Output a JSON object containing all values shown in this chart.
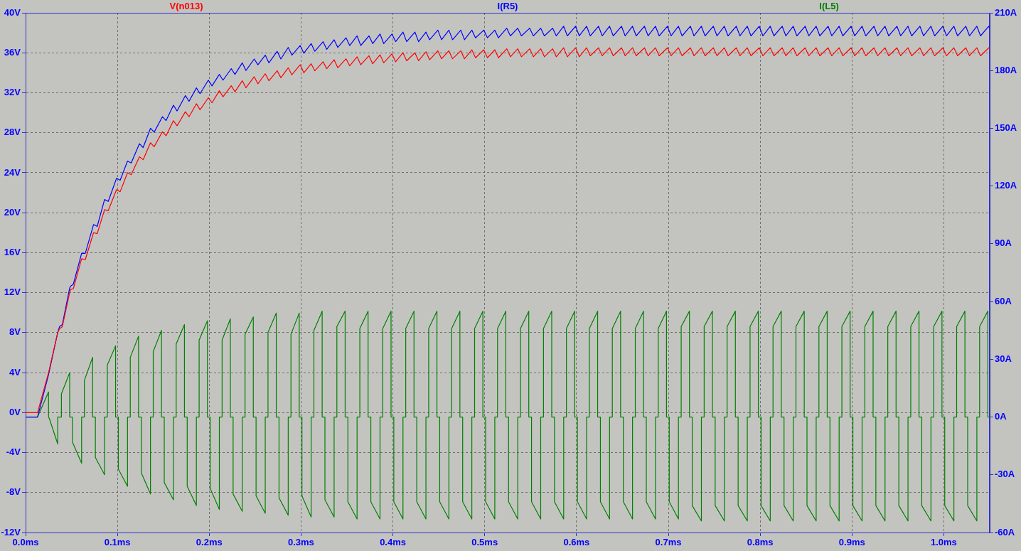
{
  "chart_data": {
    "type": "line",
    "x": [
      0,
      0.013,
      0.025,
      0.035,
      0.037,
      0.04,
      0.048,
      0.049,
      0.052,
      0.061,
      0.065,
      0.074,
      0.078,
      0.086,
      0.09,
      0.099,
      0.103,
      0.111,
      0.115,
      0.124,
      0.128,
      0.136,
      0.14,
      0.149,
      0.153,
      0.161,
      0.165,
      0.174,
      0.178,
      0.186,
      0.19,
      0.199,
      0.203,
      0.211,
      0.215,
      0.224,
      0.228,
      0.236,
      0.24,
      0.249,
      0.253,
      0.261,
      0.265,
      0.274,
      0.278,
      0.286,
      0.29,
      0.299,
      0.303,
      0.311,
      0.315,
      0.324,
      0.328,
      0.336,
      0.34,
      0.349,
      0.353,
      0.361,
      0.365,
      0.374,
      0.378,
      0.386,
      0.39,
      0.399,
      0.403,
      0.411,
      0.415,
      0.424,
      0.428,
      0.436,
      0.44,
      0.449,
      0.453,
      0.461,
      0.465,
      0.474,
      0.478,
      0.486,
      0.49,
      0.499,
      0.503,
      0.511,
      0.515,
      0.524,
      0.528,
      0.536,
      0.54,
      0.549,
      0.553,
      0.561,
      0.565,
      0.574,
      0.578,
      0.586,
      0.59,
      0.599,
      0.603,
      0.611,
      0.615,
      0.624,
      0.628,
      0.636,
      0.64,
      0.649,
      0.653,
      0.661,
      0.665,
      0.674,
      0.678,
      0.686,
      0.69,
      0.699,
      0.703,
      0.711,
      0.715,
      0.724,
      0.728,
      0.736,
      0.74,
      0.749,
      0.753,
      0.761,
      0.765,
      0.774,
      0.778,
      0.786,
      0.79,
      0.799,
      0.803,
      0.811,
      0.815,
      0.824,
      0.828,
      0.836,
      0.84,
      0.849,
      0.853,
      0.861,
      0.865,
      0.874,
      0.878,
      0.886,
      0.89,
      0.899,
      0.903,
      0.911,
      0.915,
      0.924,
      0.928,
      0.936,
      0.94,
      0.949,
      0.953,
      0.961,
      0.965,
      0.974,
      0.978,
      0.986,
      0.99,
      0.999,
      1.003,
      1.011,
      1.015,
      1.024,
      1.028,
      1.036,
      1.04,
      1.049,
      1.05
    ],
    "xlim": [
      0,
      1.05
    ],
    "xticks": [
      {
        "value": 0,
        "label": "0.0ms"
      },
      {
        "value": 0.1,
        "label": "0.1ms"
      },
      {
        "value": 0.2,
        "label": "0.2ms"
      },
      {
        "value": 0.3,
        "label": "0.3ms"
      },
      {
        "value": 0.4,
        "label": "0.4ms"
      },
      {
        "value": 0.5,
        "label": "0.5ms"
      },
      {
        "value": 0.6,
        "label": "0.6ms"
      },
      {
        "value": 0.7,
        "label": "0.7ms"
      },
      {
        "value": 0.8,
        "label": "0.8ms"
      },
      {
        "value": 0.9,
        "label": "0.9ms"
      },
      {
        "value": 1,
        "label": "1.0ms"
      }
    ],
    "ylim": [
      -12,
      40
    ],
    "yticks": [
      {
        "value": -12,
        "label": "-12V"
      },
      {
        "value": -8,
        "label": "-8V"
      },
      {
        "value": -4,
        "label": "-4V"
      },
      {
        "value": 0,
        "label": "0V"
      },
      {
        "value": 4,
        "label": "4V"
      },
      {
        "value": 8,
        "label": "8V"
      },
      {
        "value": 12,
        "label": "12V"
      },
      {
        "value": 16,
        "label": "16V"
      },
      {
        "value": 20,
        "label": "20V"
      },
      {
        "value": 24,
        "label": "24V"
      },
      {
        "value": 28,
        "label": "28V"
      },
      {
        "value": 32,
        "label": "32V"
      },
      {
        "value": 36,
        "label": "36V"
      },
      {
        "value": 40,
        "label": "40V"
      }
    ],
    "y2lim": [
      -60,
      210
    ],
    "y2ticks": [
      {
        "value": -60,
        "label": "-60A"
      },
      {
        "value": -30,
        "label": "-30A"
      },
      {
        "value": 0,
        "label": "0A"
      },
      {
        "value": 30,
        "label": "30A"
      },
      {
        "value": 60,
        "label": "60A"
      },
      {
        "value": 90,
        "label": "90A"
      },
      {
        "value": 120,
        "label": "120A"
      },
      {
        "value": 150,
        "label": "150A"
      },
      {
        "value": 180,
        "label": "180A"
      },
      {
        "value": 210,
        "label": "210A"
      }
    ],
    "grid": true,
    "legend": "top",
    "marker": "none",
    "line_style": "solid",
    "series": [
      {
        "name": "V(n013)",
        "color": "#ff0000",
        "values": [
          0,
          0,
          4,
          8,
          8.4,
          8.6,
          12,
          12.3,
          12.4,
          15.4,
          15.3,
          18,
          17.9,
          20.3,
          20.2,
          22.3,
          22.1,
          24,
          23.8,
          25.6,
          25.3,
          27,
          26.6,
          28.1,
          27.7,
          29.2,
          28.7,
          30.1,
          29.6,
          30.9,
          30.3,
          31.5,
          31,
          32.2,
          31.6,
          32.7,
          32.1,
          33.2,
          32.5,
          33.6,
          32.9,
          33.9,
          33.2,
          34.2,
          33.5,
          34.5,
          33.8,
          34.8,
          34,
          34.9,
          34.2,
          35.1,
          34.4,
          35.3,
          34.5,
          35.4,
          34.7,
          35.6,
          34.8,
          35.7,
          34.9,
          35.8,
          35,
          35.9,
          35.1,
          36,
          35.2,
          36,
          35.2,
          36.1,
          35.3,
          36.2,
          35.4,
          36.2,
          35.4,
          36.2,
          35.4,
          36.3,
          35.5,
          36.3,
          35.5,
          36.3,
          35.5,
          36.4,
          35.6,
          36.4,
          35.6,
          36.4,
          35.6,
          36.4,
          35.6,
          36.4,
          35.6,
          36.5,
          35.6,
          36.5,
          35.6,
          36.5,
          35.7,
          36.5,
          35.7,
          36.5,
          35.7,
          36.5,
          35.7,
          36.5,
          35.7,
          36.5,
          35.7,
          36.5,
          35.7,
          36.5,
          35.7,
          36.5,
          35.7,
          36.5,
          35.7,
          36.5,
          35.7,
          36.5,
          35.7,
          36.5,
          35.7,
          36.5,
          35.7,
          36.5,
          35.7,
          36.5,
          35.7,
          36.5,
          35.7,
          36.5,
          35.7,
          36.5,
          35.7,
          36.5,
          35.7,
          36.5,
          35.7,
          36.5,
          35.7,
          36.5,
          35.7,
          36.5,
          35.7,
          36.5,
          35.7,
          36.5,
          35.7,
          36.5,
          35.7,
          36.5,
          35.7,
          36.5,
          35.7,
          36.5,
          35.7,
          36.5,
          35.7,
          36.5,
          35.7,
          36.5,
          35.7,
          36.5,
          35.7,
          36.5,
          35.7,
          36.5,
          36.4
        ]
      },
      {
        "name": "I(R5)",
        "color": "#0000ff",
        "axis": "y2",
        "values": [
          0,
          0,
          22,
          44,
          47,
          48,
          67,
          68,
          69,
          85,
          85,
          100,
          99,
          113,
          112,
          124,
          123,
          133,
          132,
          142,
          140,
          150,
          148,
          156,
          154,
          162,
          159,
          167,
          164,
          171,
          168,
          175,
          172,
          178,
          175,
          181,
          178,
          184,
          180,
          186,
          183,
          188,
          184,
          190,
          186,
          192,
          188,
          193,
          189,
          194,
          190,
          195,
          191,
          196,
          192,
          197,
          193,
          198,
          193,
          198,
          194,
          199,
          194,
          199,
          195,
          200,
          195,
          200,
          195,
          200,
          196,
          201,
          196,
          201,
          196,
          201,
          196,
          201,
          197,
          201,
          197,
          201,
          197,
          202,
          198,
          202,
          198,
          202,
          198,
          202,
          198,
          202,
          198,
          203,
          198,
          203,
          198,
          203,
          198,
          203,
          198,
          203,
          198,
          203,
          198,
          203,
          198,
          203,
          198,
          203,
          198,
          203,
          198,
          203,
          198,
          203,
          198,
          203,
          198,
          203,
          198,
          203,
          198,
          203,
          198,
          203,
          198,
          203,
          198,
          203,
          198,
          203,
          198,
          203,
          198,
          203,
          198,
          203,
          198,
          203,
          198,
          203,
          198,
          203,
          198,
          203,
          198,
          203,
          198,
          203,
          198,
          203,
          198,
          203,
          198,
          203,
          198,
          203,
          198,
          203,
          198,
          203,
          198,
          203,
          198,
          203,
          198,
          203,
          202
        ]
      },
      {
        "name": "I(L5)",
        "color": "#008000",
        "axis": "y2",
        "x": [
          0,
          0.013,
          0.025,
          0.025,
          0.026,
          0.035,
          0.035,
          0.039,
          0.039,
          0.048,
          0.048,
          0.051,
          0.051,
          0.061,
          0.061,
          0.064,
          0.064,
          0.073,
          0.073,
          0.076,
          0.076,
          0.086,
          0.086,
          0.089,
          0.089,
          0.098,
          0.098,
          0.101,
          0.101,
          0.111,
          0.111,
          0.114,
          0.114,
          0.123,
          0.123,
          0.126,
          0.126,
          0.136,
          0.136,
          0.139,
          0.139,
          0.148,
          0.148,
          0.151,
          0.151,
          0.161,
          0.161,
          0.164,
          0.164,
          0.173,
          0.173,
          0.176,
          0.176,
          0.186,
          0.186,
          0.189,
          0.189,
          0.198,
          0.198,
          0.201,
          0.201,
          0.211,
          0.211,
          0.214,
          0.214,
          0.223,
          0.223,
          0.226,
          0.226,
          0.236,
          0.236,
          0.239,
          0.239,
          0.248,
          0.248,
          0.251,
          0.251,
          0.261,
          0.261,
          0.264,
          0.264,
          0.273,
          0.273,
          0.276,
          0.276,
          0.286,
          0.286,
          0.289,
          0.289,
          0.298,
          0.298,
          0.301,
          0.301,
          0.311,
          0.311,
          0.314,
          0.314,
          0.323,
          0.323,
          0.326,
          0.326,
          0.336,
          0.336,
          0.339,
          0.339,
          0.348,
          0.348,
          0.351,
          0.351,
          0.361,
          0.361,
          0.364,
          0.364,
          0.373,
          0.373,
          0.376,
          0.376,
          0.386,
          0.386,
          0.389,
          0.389,
          0.398,
          0.398,
          0.401,
          0.401,
          0.411,
          0.411,
          0.414,
          0.414,
          0.423,
          0.423,
          0.426,
          0.426,
          0.436,
          0.436,
          0.439,
          0.439,
          0.448,
          0.448,
          0.451,
          0.451,
          0.461,
          0.461,
          0.464,
          0.464,
          0.473,
          0.473,
          0.476,
          0.476,
          0.486,
          0.486,
          0.489,
          0.489,
          0.498,
          0.498,
          0.501,
          0.501,
          0.511,
          0.511,
          0.514,
          0.514,
          0.523,
          0.523,
          0.526,
          0.526,
          0.536,
          0.536,
          0.539,
          0.539,
          0.548,
          0.548,
          0.551,
          0.551,
          0.561,
          0.561,
          0.564,
          0.564,
          0.573,
          0.573,
          0.576,
          0.576,
          0.586,
          0.586,
          0.589,
          0.589,
          0.598,
          0.598,
          0.601,
          0.601,
          0.611,
          0.611,
          0.614,
          0.614,
          0.623,
          0.623,
          0.626,
          0.626,
          0.636,
          0.636,
          0.639,
          0.639,
          0.648,
          0.648,
          0.651,
          0.651,
          0.661,
          0.661,
          0.664,
          0.664,
          0.673,
          0.673,
          0.676,
          0.676,
          0.686,
          0.686,
          0.689,
          0.689,
          0.698,
          0.698,
          0.701,
          0.701,
          0.711,
          0.711,
          0.714,
          0.714,
          0.723,
          0.723,
          0.726,
          0.726,
          0.736,
          0.736,
          0.739,
          0.739,
          0.748,
          0.748,
          0.751,
          0.751,
          0.761,
          0.761,
          0.764,
          0.764,
          0.773,
          0.773,
          0.776,
          0.776,
          0.786,
          0.786,
          0.789,
          0.789,
          0.798,
          0.798,
          0.801,
          0.801,
          0.811,
          0.811,
          0.814,
          0.814,
          0.823,
          0.823,
          0.826,
          0.826,
          0.836,
          0.836,
          0.839,
          0.839,
          0.848,
          0.848,
          0.851,
          0.851,
          0.861,
          0.861,
          0.864,
          0.864,
          0.873,
          0.873,
          0.876,
          0.876,
          0.886,
          0.886,
          0.889,
          0.889,
          0.898,
          0.898,
          0.901,
          0.901,
          0.911,
          0.911,
          0.914,
          0.914,
          0.923,
          0.923,
          0.926,
          0.926,
          0.936,
          0.936,
          0.939,
          0.939,
          0.948,
          0.948,
          0.951,
          0.951,
          0.961,
          0.961,
          0.964,
          0.964,
          0.973,
          0.973,
          0.976,
          0.976,
          0.986,
          0.986,
          0.989,
          0.989,
          0.998,
          0.998,
          1.001,
          1.001,
          1.011,
          1.011,
          1.014,
          1.014,
          1.023,
          1.023,
          1.026,
          1.026,
          1.036,
          1.036,
          1.039,
          1.039,
          1.048,
          1.048,
          1.05
        ],
        "values": [
          0,
          0,
          13,
          0,
          -1,
          -14,
          0,
          0,
          12,
          23,
          0,
          0,
          -13,
          -24,
          0,
          0,
          19,
          31,
          0,
          0,
          -21,
          -30,
          0,
          0,
          27,
          37,
          0,
          0,
          -27,
          -36,
          0,
          0,
          31,
          42,
          0,
          0,
          -29,
          -40,
          0,
          0,
          34,
          45,
          0,
          0,
          -34,
          -43,
          0,
          0,
          38,
          48,
          0,
          0,
          -36,
          -46,
          0,
          0,
          40,
          50,
          0,
          0,
          -37,
          -48,
          0,
          0,
          40,
          51,
          0,
          0,
          -40,
          -49,
          0,
          0,
          43,
          52,
          0,
          0,
          -41,
          -50,
          0,
          0,
          44,
          54,
          0,
          0,
          -42,
          -51,
          0,
          0,
          43,
          54,
          0,
          0,
          -41,
          -52,
          0,
          0,
          45,
          55,
          0,
          0,
          -43,
          -52,
          0,
          0,
          47,
          55,
          0,
          0,
          -44,
          -53,
          0,
          0,
          46,
          55,
          0,
          0,
          -44,
          -53,
          0,
          0,
          46,
          55,
          0,
          0,
          -44,
          -53,
          0,
          0,
          46,
          55,
          0,
          0,
          -44,
          -53,
          0,
          0,
          46,
          55,
          0,
          0,
          -44,
          -53,
          0,
          0,
          46,
          55,
          0,
          0,
          -44,
          -53,
          0,
          0,
          46,
          55,
          0,
          0,
          -44,
          -53,
          0,
          0,
          46,
          55,
          0,
          0,
          -44,
          -53,
          0,
          0,
          46,
          55,
          0,
          0,
          -44,
          -53,
          0,
          0,
          46,
          55,
          0,
          0,
          -44,
          -53,
          0,
          0,
          46,
          55,
          0,
          0,
          -44,
          -53,
          0,
          0,
          46,
          55,
          0,
          0,
          -44,
          -53,
          0,
          0,
          46,
          55,
          0,
          0,
          -44,
          -53,
          0,
          0,
          46,
          55,
          0,
          0,
          -44,
          -53,
          0,
          0,
          46,
          55,
          0,
          0,
          -44,
          -53,
          0,
          0,
          47,
          55,
          0,
          0,
          -46,
          -54,
          0,
          0,
          47,
          55,
          0,
          0,
          -46,
          -54,
          0,
          0,
          47,
          55,
          0,
          0,
          -46,
          -54,
          0,
          0,
          47,
          55,
          0,
          0,
          -46,
          -54,
          0,
          0,
          47,
          55,
          0,
          0,
          -46,
          -54,
          0,
          0,
          47,
          55,
          0,
          0,
          -46,
          -54,
          0,
          0,
          47,
          55,
          0,
          0,
          -46,
          -54,
          0,
          0,
          47,
          55,
          0,
          0,
          -46,
          -54,
          0,
          0,
          47,
          55,
          0,
          0,
          -46,
          -54,
          0,
          0,
          47,
          55,
          0,
          0,
          -46,
          -54,
          0,
          0,
          47,
          55,
          0,
          0,
          -46,
          -54,
          0,
          0,
          47,
          55,
          0,
          0,
          -46,
          -54,
          0,
          0,
          47,
          55,
          0,
          0,
          -46,
          -54,
          0,
          0,
          47,
          55,
          0,
          0
        ]
      }
    ]
  }
}
